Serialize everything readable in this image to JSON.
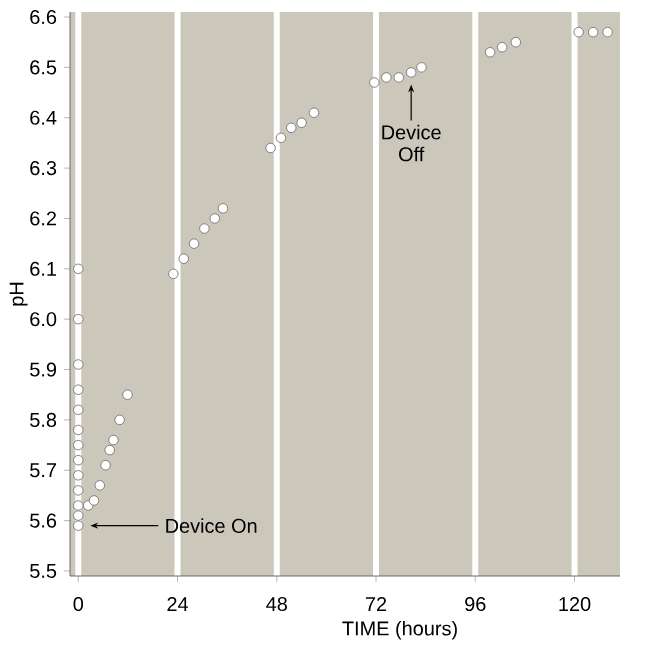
{
  "chart_data": {
    "type": "scatter",
    "xlabel": "TIME (hours)",
    "ylabel": "pH",
    "series": [
      {
        "color": "#ffffff",
        "x": [
          0,
          0,
          0,
          0,
          0,
          0,
          0,
          0,
          0,
          0,
          0,
          0,
          0,
          2.4,
          3.8,
          5.2,
          6.6,
          7.6,
          8.5,
          10,
          11.9,
          23,
          25.5,
          28,
          30.5,
          33,
          35,
          46.5,
          49,
          51.5,
          54,
          57,
          71.6,
          74.5,
          77.5,
          80.5,
          83,
          99.6,
          102.5,
          105.8,
          121,
          124.5,
          128
        ],
        "values": [
          6.1,
          6.0,
          5.91,
          5.86,
          5.82,
          5.78,
          5.75,
          5.72,
          5.69,
          5.66,
          5.63,
          5.61,
          5.59,
          5.63,
          5.64,
          5.67,
          5.71,
          5.74,
          5.76,
          5.8,
          5.85,
          6.09,
          6.12,
          6.15,
          6.18,
          6.2,
          6.22,
          6.34,
          6.36,
          6.38,
          6.39,
          6.41,
          6.47,
          6.48,
          6.48,
          6.49,
          6.5,
          6.53,
          6.54,
          6.55,
          6.57,
          6.57,
          6.57
        ]
      }
    ],
    "marker": "circle",
    "xlim": [
      -2,
      131
    ],
    "ylim": [
      5.49,
      6.61
    ],
    "xticks": [
      0,
      24,
      48,
      72,
      96,
      120
    ],
    "yticks": [
      5.5,
      5.6,
      5.7,
      5.8,
      5.9,
      {
        "value": 6.0,
        "label": "6.0"
      },
      6.1,
      6.2,
      6.3,
      6.4,
      6.5,
      6.6
    ],
    "grid": "x",
    "annotations": [
      {
        "text": "Device On",
        "x": 0,
        "y": 5.59
      },
      {
        "text": "Device Off",
        "x": 80.5,
        "y": 6.49
      }
    ]
  }
}
